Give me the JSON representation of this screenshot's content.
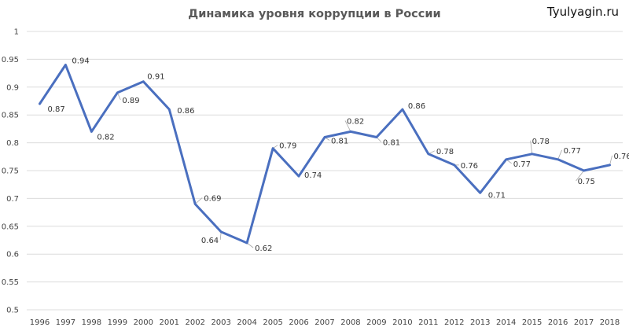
{
  "chart_data": {
    "type": "line",
    "title": "Динамика уровня коррупции в России",
    "xlabel": "",
    "ylabel": "",
    "ylim": [
      0.5,
      1
    ],
    "yticks": [
      "0.5",
      "0.55",
      "0.6",
      "0.65",
      "0.7",
      "0.75",
      "0.8",
      "0.85",
      "0.9",
      "0.95",
      "1"
    ],
    "grid": true,
    "legend": "none",
    "categories": [
      "1996",
      "1997",
      "1998",
      "1999",
      "2000",
      "2001",
      "2002",
      "2003",
      "2004",
      "2005",
      "2006",
      "2007",
      "2008",
      "2009",
      "2010",
      "2011",
      "2012",
      "2013",
      "2014",
      "2015",
      "2016",
      "2017",
      "2018"
    ],
    "series": [
      {
        "values": [
          0.87,
          0.94,
          0.82,
          0.89,
          0.91,
          0.86,
          0.69,
          0.64,
          0.62,
          0.79,
          0.74,
          0.81,
          0.82,
          0.81,
          0.86,
          0.78,
          0.76,
          0.71,
          0.77,
          0.78,
          0.77,
          0.75,
          0.76
        ],
        "labels": [
          "0.87",
          "0.94",
          "0.82",
          "0.89",
          "0.91",
          "0.86",
          "0.69",
          "0.64",
          "0.62",
          "0.79",
          "0.74",
          "0.81",
          "0.82",
          "0.81",
          "0.86",
          "0.78",
          "0.76",
          "0.71",
          "0.77",
          "0.78",
          "0.77",
          "0.75",
          "0.76"
        ],
        "color": "#4a6fbf"
      }
    ]
  },
  "watermark": "Tyulyagin.ru"
}
